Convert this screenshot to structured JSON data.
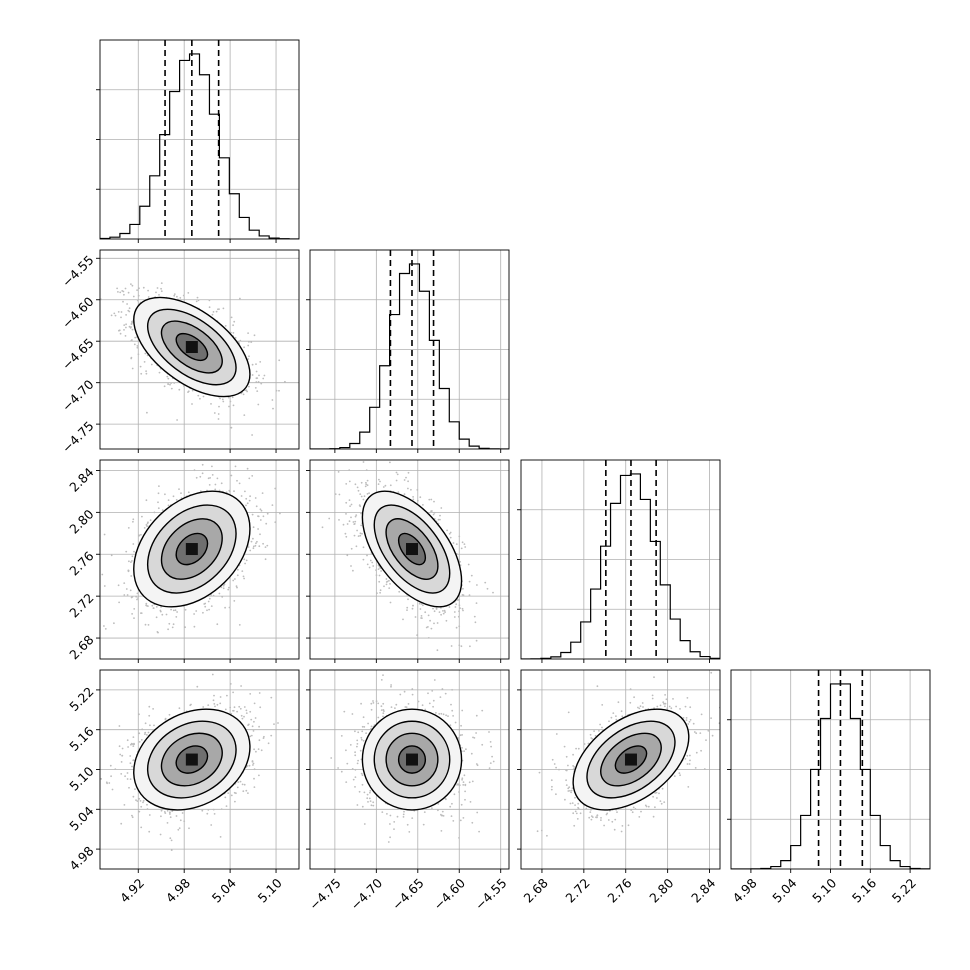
{
  "chart_data": {
    "type": "corner",
    "grid": true,
    "parameters": [
      {
        "index": 0,
        "range": [
          4.87,
          5.13
        ],
        "ticks": [
          4.92,
          4.98,
          5.04,
          5.1
        ],
        "tick_labels": [
          "4.92",
          "4.98",
          "5.04",
          "5.10"
        ],
        "median": 4.99,
        "q16": 4.955,
        "q84": 5.025,
        "sigma": 0.033
      },
      {
        "index": 1,
        "range": [
          -4.78,
          -4.54
        ],
        "ticks": [
          -4.75,
          -4.7,
          -4.65,
          -4.6,
          -4.55
        ],
        "tick_labels": [
          "−4.75",
          "−4.70",
          "−4.65",
          "−4.60",
          "−4.55"
        ],
        "median": -4.657,
        "q16": -4.683,
        "q84": -4.631,
        "sigma": 0.026
      },
      {
        "index": 2,
        "range": [
          2.66,
          2.85
        ],
        "ticks": [
          2.68,
          2.72,
          2.76,
          2.8,
          2.84
        ],
        "tick_labels": [
          "2.68",
          "2.72",
          "2.76",
          "2.80",
          "2.84"
        ],
        "median": 2.765,
        "q16": 2.741,
        "q84": 2.789,
        "sigma": 0.024
      },
      {
        "index": 3,
        "range": [
          4.95,
          5.25
        ],
        "ticks": [
          4.98,
          5.04,
          5.1,
          5.16,
          5.22
        ],
        "tick_labels": [
          "4.98",
          "5.04",
          "5.10",
          "5.16",
          "5.22"
        ],
        "median": 5.115,
        "q16": 5.082,
        "q84": 5.148,
        "sigma": 0.033
      }
    ],
    "correlations": [
      {
        "pair": [
          0,
          1
        ],
        "rho": -0.55
      },
      {
        "pair": [
          0,
          2
        ],
        "rho": 0.35
      },
      {
        "pair": [
          1,
          2
        ],
        "rho": -0.55
      },
      {
        "pair": [
          0,
          3
        ],
        "rho": 0.25
      },
      {
        "pair": [
          1,
          3
        ],
        "rho": 0.0
      },
      {
        "pair": [
          2,
          3
        ],
        "rho": 0.45
      }
    ],
    "histogram_bins": 20,
    "quantile_lines": "dashed at 16th, 50th, 84th percentiles",
    "contour_levels": 4,
    "colors": {
      "line": "#000000",
      "grid": "#b0b0b0",
      "scatter": "#bdbdbd"
    }
  }
}
